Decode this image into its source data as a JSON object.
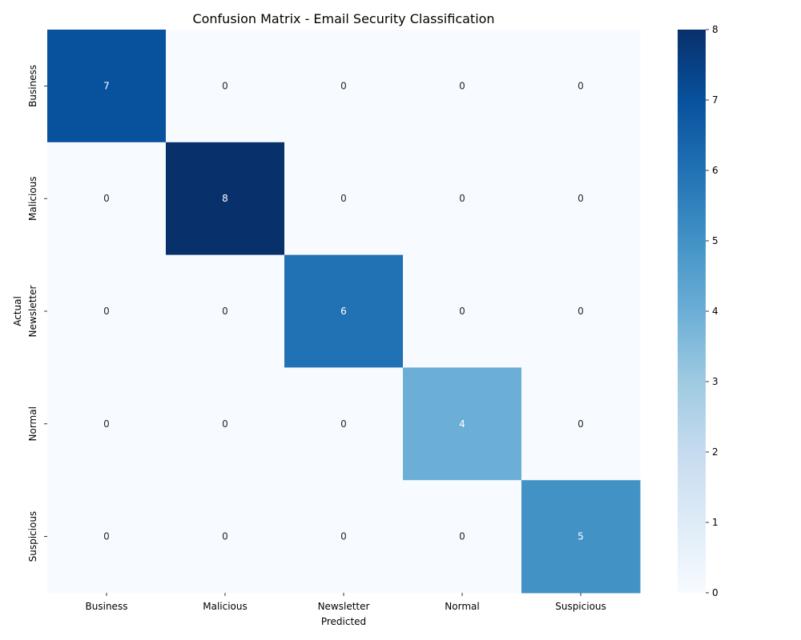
{
  "chart_data": {
    "type": "heatmap",
    "title": "Confusion Matrix - Email Security Classification",
    "xlabel": "Predicted",
    "ylabel": "Actual",
    "x_categories": [
      "Business",
      "Malicious",
      "Newsletter",
      "Normal",
      "Suspicious"
    ],
    "y_categories": [
      "Business",
      "Malicious",
      "Newsletter",
      "Normal",
      "Suspicious"
    ],
    "matrix": [
      [
        7,
        0,
        0,
        0,
        0
      ],
      [
        0,
        8,
        0,
        0,
        0
      ],
      [
        0,
        0,
        6,
        0,
        0
      ],
      [
        0,
        0,
        0,
        4,
        0
      ],
      [
        0,
        0,
        0,
        0,
        5
      ]
    ],
    "colorbar": {
      "min": 0,
      "max": 8,
      "ticks": [
        0,
        1,
        2,
        3,
        4,
        5,
        6,
        7,
        8
      ]
    },
    "colormap": "Blues",
    "annotations": true,
    "grid": false
  }
}
